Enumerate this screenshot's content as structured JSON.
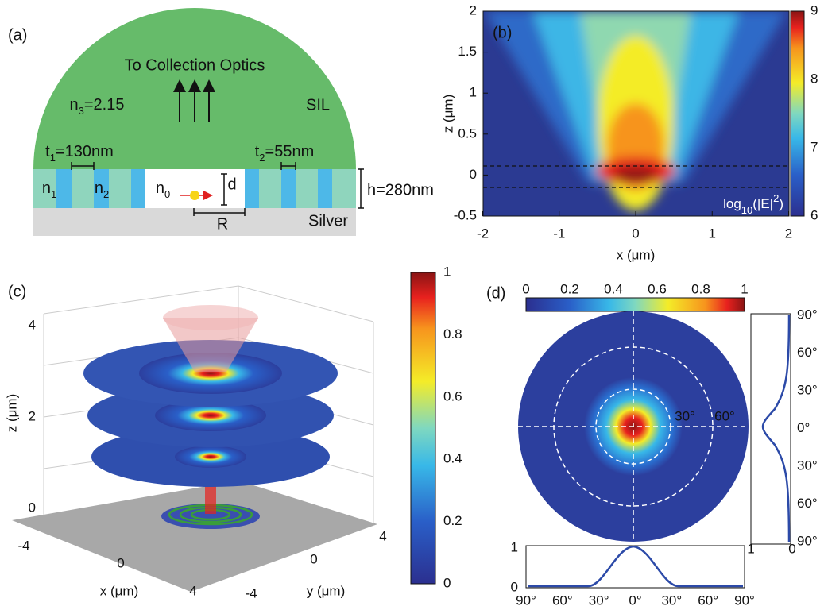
{
  "panel_a": {
    "label": "(a)",
    "top_text": "To Collection Optics",
    "sil_index": {
      "symbol": "n",
      "sub": "3",
      "value": "=2.15"
    },
    "sil": "SIL",
    "t1": {
      "symbol": "t",
      "sub": "1",
      "value": "=130nm"
    },
    "t2": {
      "symbol": "t",
      "sub": "2",
      "value": "=55nm"
    },
    "n1": {
      "symbol": "n",
      "sub": "1"
    },
    "n2": {
      "symbol": "n",
      "sub": "2"
    },
    "n0": {
      "symbol": "n",
      "sub": "0"
    },
    "d": "d",
    "h": "h=280nm",
    "R": "R",
    "silver": "Silver"
  },
  "panel_b": {
    "label": "(b)",
    "x_label": "x (μm)",
    "y_label": "z (μm)",
    "x_ticks": [
      -2,
      -1,
      0,
      1,
      2
    ],
    "z_ticks": [
      -0.5,
      0,
      0.5,
      1,
      1.5,
      2
    ],
    "colorbar_ticks": [
      6,
      7,
      8,
      9
    ],
    "colorbar_label": {
      "prefix": "log",
      "sub": "10",
      "mid": "(|E|",
      "sup": "2",
      "end": ")"
    }
  },
  "panel_c": {
    "label": "(c)",
    "x_label": "x (μm)",
    "y_label": "y (μm)",
    "z_label": "z (μm)",
    "z_ticks": [
      0,
      2,
      4
    ],
    "x_ticks": [
      -4,
      0,
      4
    ],
    "y_ticks": [
      4,
      0,
      -4
    ],
    "colorbar_ticks": [
      0,
      0.2,
      0.4,
      0.6,
      0.8,
      1
    ]
  },
  "panel_d": {
    "label": "(d)",
    "colorbar_ticks": [
      0,
      0.2,
      0.4,
      0.6,
      0.8,
      1
    ],
    "ring_labels": [
      "30°",
      "60°"
    ],
    "side_angle_ticks": [
      "90°",
      "60°",
      "30°",
      "0°",
      "30°",
      "60°",
      "90°"
    ],
    "side_value_ticks": [
      "1",
      "0"
    ],
    "bottom_value_ticks": [
      "1",
      "0"
    ],
    "bottom_angle_ticks": [
      "90°",
      "60°",
      "30°",
      "0°",
      "30°",
      "60°",
      "90°"
    ]
  }
}
